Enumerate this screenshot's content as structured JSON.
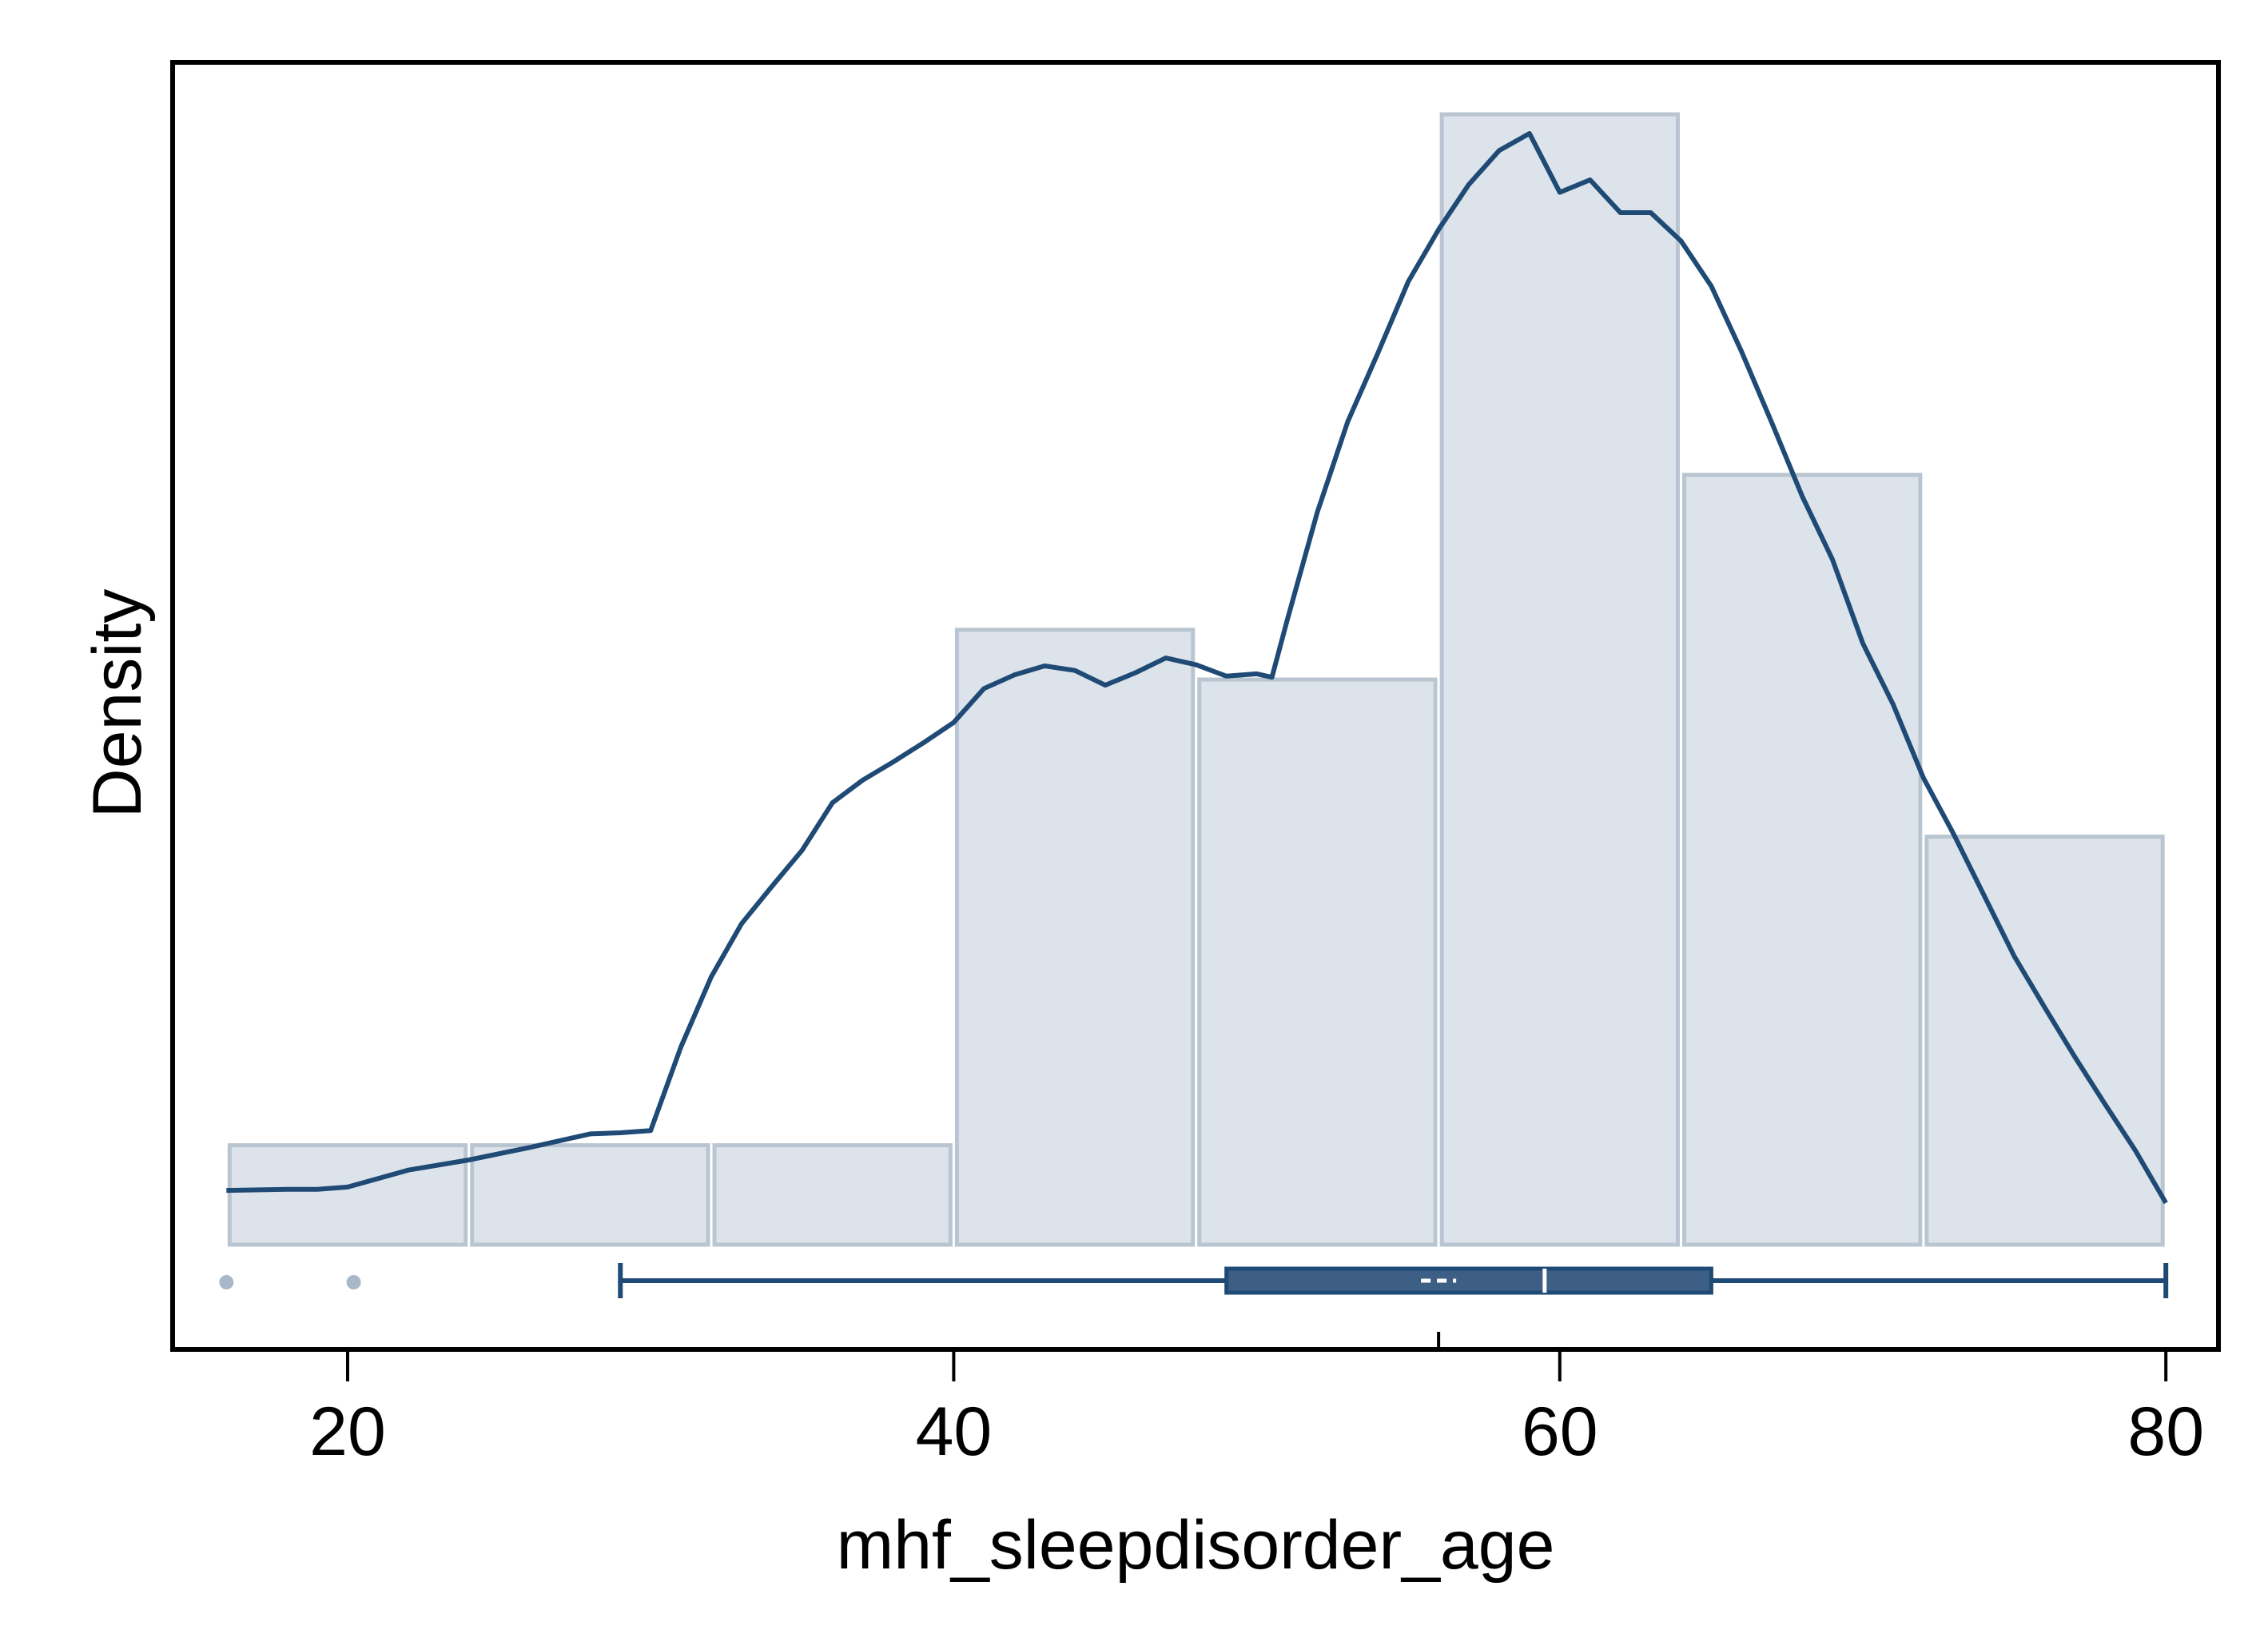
{
  "chart_data": {
    "type": "histogram",
    "title": "",
    "xlabel": "mhf_sleepdisorder_age",
    "ylabel": "Density",
    "xlim": [
      14.5,
      81
    ],
    "x_ticks": [
      20,
      40,
      60,
      80
    ],
    "x_tick_labels": [
      "20",
      "40",
      "60",
      "80"
    ],
    "y_ticks_shown": false,
    "grid": false,
    "legend": "none",
    "histogram": {
      "bins": [
        {
          "start": 16,
          "end": 24,
          "relative_height": 0.088
        },
        {
          "start": 24,
          "end": 32,
          "relative_height": 0.088
        },
        {
          "start": 32,
          "end": 40,
          "relative_height": 0.088
        },
        {
          "start": 40,
          "end": 48,
          "relative_height": 0.544
        },
        {
          "start": 48,
          "end": 56,
          "relative_height": 0.5
        },
        {
          "start": 56,
          "end": 64,
          "relative_height": 1.0
        },
        {
          "start": 64,
          "end": 72,
          "relative_height": 0.681
        },
        {
          "start": 72,
          "end": 80,
          "relative_height": 0.361
        }
      ]
    },
    "density_curve": {
      "x": [
        16,
        18,
        19,
        20,
        22,
        24,
        26,
        28,
        29,
        30,
        31,
        32,
        33,
        34,
        35,
        36,
        37,
        38,
        39,
        40,
        41,
        42,
        43,
        44,
        45,
        46,
        47,
        48,
        49,
        50,
        50.5,
        51,
        52,
        53,
        54,
        55,
        56,
        57,
        58,
        59,
        60,
        61,
        62,
        63,
        64,
        65,
        66,
        67,
        68,
        69,
        70,
        71,
        72,
        73,
        74,
        75,
        76,
        77,
        78,
        79,
        80
      ],
      "relative_y": [
        0.048,
        0.049,
        0.049,
        0.051,
        0.066,
        0.075,
        0.086,
        0.098,
        0.099,
        0.101,
        0.175,
        0.237,
        0.284,
        0.317,
        0.349,
        0.391,
        0.411,
        0.427,
        0.444,
        0.462,
        0.492,
        0.504,
        0.512,
        0.508,
        0.495,
        0.506,
        0.519,
        0.513,
        0.503,
        0.505,
        0.502,
        0.552,
        0.648,
        0.728,
        0.789,
        0.852,
        0.898,
        0.938,
        0.968,
        0.983,
        0.931,
        0.942,
        0.913,
        0.913,
        0.888,
        0.848,
        0.79,
        0.727,
        0.662,
        0.606,
        0.532,
        0.478,
        0.413,
        0.363,
        0.309,
        0.255,
        0.21,
        0.166,
        0.124,
        0.083,
        0.037
      ]
    },
    "box_plot": {
      "whisker_low": 29,
      "q1": 49,
      "median": 59.5,
      "q3": 65,
      "whisker_high": 80,
      "mean": 56,
      "outliers": [
        16,
        20.2
      ]
    },
    "colors": {
      "bar_fill": "#dce3ea",
      "bar_stroke": "#b9c6d1",
      "curve": "#1f4a75",
      "box_fill": "#3d5f86",
      "box_stroke": "#1f4a75",
      "outlier": "#a9b8c8",
      "axis": "#000000"
    }
  }
}
